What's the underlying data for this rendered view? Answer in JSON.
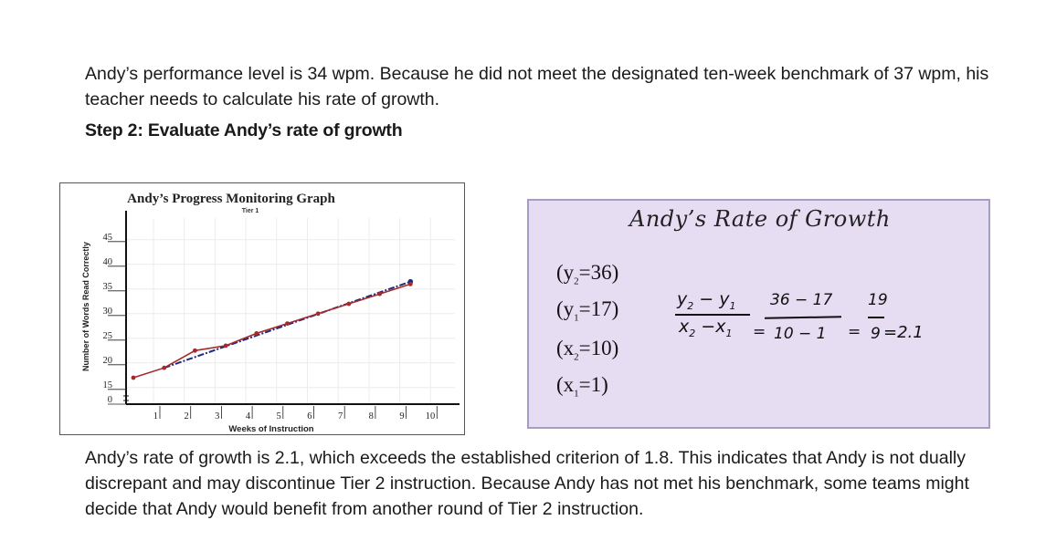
{
  "intro_paragraph": "Andy’s performance level is 34 wpm. Because he did not meet the designated ten-week benchmark of 37 wpm, his teacher needs to calculate his rate of growth.",
  "step_heading": "Step 2: Evaluate Andy’s rate of growth",
  "graph": {
    "title": "Andy’s Progress Monitoring Graph",
    "subtitle": "Tier 1",
    "ylabel": "Number of Words Read Correctly",
    "xlabel": "Weeks of Instruction",
    "y_ticks": [
      "45",
      "40",
      "35",
      "30",
      "25",
      "20",
      "15",
      "0"
    ],
    "x_ticks": [
      "1",
      "2",
      "3",
      "4",
      "5",
      "6",
      "7",
      "8",
      "9",
      "10"
    ]
  },
  "chart_data": {
    "type": "line",
    "title": "Andy’s Progress Monitoring Graph",
    "subtitle": "Tier 1",
    "xlabel": "Weeks of Instruction",
    "ylabel": "Number of Words Read Correctly",
    "x": [
      1,
      2,
      3,
      4,
      5,
      6,
      7,
      8,
      9,
      10
    ],
    "ylim": [
      12,
      45
    ],
    "xlim": [
      0.5,
      10.8
    ],
    "y_ticks": [
      15,
      20,
      25,
      30,
      35,
      40,
      45
    ],
    "series": [
      {
        "style": "solid",
        "color": "#a52a2a",
        "marker": "circle",
        "values": [
          17,
          19,
          22.5,
          23.5,
          26,
          28,
          30,
          32,
          34,
          36
        ]
      },
      {
        "style": "dashed",
        "color": "#1f2a7a",
        "x": [
          2,
          10
        ],
        "values": [
          19,
          36.5
        ]
      }
    ]
  },
  "growth_box": {
    "title": "Andy’s Rate of Growth",
    "variables": [
      "(y2=36)",
      "(y1=17)",
      "(x2=10)",
      "(x1=1)"
    ],
    "formula": {
      "numerator": "y2 − y1",
      "denominator": "x2 − x1",
      "eq1": "=",
      "sub_numerator": "36 − 17",
      "sub_denominator": "10 − 1",
      "eq2": "=",
      "frac_numerator": "19",
      "frac_denominator": "9",
      "result": "=2.1"
    },
    "colors": {
      "background": "#e6ddf3",
      "border": "#a79bc8"
    }
  },
  "conclusion_paragraph": "Andy’s rate of growth is 2.1, which exceeds the established criterion of 1.8. This indicates that Andy is not dually discrepant and may discontinue Tier 2 instruction. Because Andy has not met his benchmark, some teams might decide that Andy would benefit from another round of Tier 2 instruction."
}
